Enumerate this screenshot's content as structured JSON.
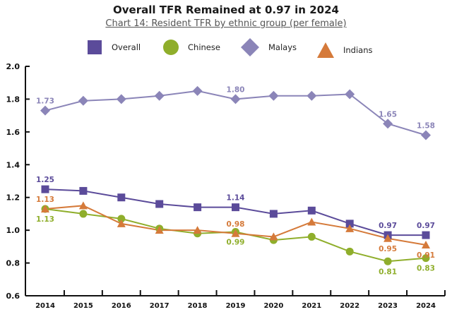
{
  "chart_data": {
    "type": "line",
    "title": "Overall TFR Remained at 0.97 in 2024",
    "subtitle": "Chart 14: Resident TFR by ethnic group (per female)",
    "xlabel": "",
    "ylabel": "",
    "x": [
      "2014",
      "2015",
      "2016",
      "2017",
      "2018",
      "2019",
      "2020",
      "2021",
      "2022",
      "2023",
      "2024"
    ],
    "ylim": [
      0.6,
      2.0
    ],
    "yticks": [
      "0.6",
      "0.8",
      "1.0",
      "1.2",
      "1.4",
      "1.6",
      "1.8",
      "2.0"
    ],
    "grid": false,
    "legend_position": "top",
    "series": [
      {
        "name": "Overall",
        "marker": "square",
        "color": "#5b4b9a",
        "values": [
          1.25,
          1.24,
          1.2,
          1.16,
          1.14,
          1.14,
          1.1,
          1.12,
          1.04,
          0.97,
          0.97
        ],
        "labels": [
          {
            "i": 0,
            "text": "1.25",
            "pos": "above"
          },
          {
            "i": 5,
            "text": "1.14",
            "pos": "above"
          },
          {
            "i": 9,
            "text": "0.97",
            "pos": "above"
          },
          {
            "i": 10,
            "text": "0.97",
            "pos": "above"
          }
        ]
      },
      {
        "name": "Chinese",
        "marker": "circle",
        "color": "#8fae2b",
        "values": [
          1.13,
          1.1,
          1.07,
          1.01,
          0.98,
          0.99,
          0.94,
          0.96,
          0.87,
          0.81,
          0.83
        ],
        "labels": [
          {
            "i": 0,
            "text": "1.13",
            "pos": "below"
          },
          {
            "i": 5,
            "text": "0.99",
            "pos": "below"
          },
          {
            "i": 9,
            "text": "0.81",
            "pos": "below"
          },
          {
            "i": 10,
            "text": "0.83",
            "pos": "below"
          }
        ]
      },
      {
        "name": "Malays",
        "marker": "diamond",
        "color": "#8b85b8",
        "values": [
          1.73,
          1.79,
          1.8,
          1.82,
          1.85,
          1.8,
          1.82,
          1.82,
          1.83,
          1.65,
          1.58
        ],
        "labels": [
          {
            "i": 0,
            "text": "1.73",
            "pos": "above"
          },
          {
            "i": 5,
            "text": "1.80",
            "pos": "above"
          },
          {
            "i": 9,
            "text": "1.65",
            "pos": "above"
          },
          {
            "i": 10,
            "text": "1.58",
            "pos": "above"
          }
        ]
      },
      {
        "name": "Indians",
        "marker": "triangle",
        "color": "#d57a3a",
        "values": [
          1.13,
          1.15,
          1.04,
          1.0,
          1.0,
          0.98,
          0.96,
          1.05,
          1.01,
          0.95,
          0.91
        ],
        "labels": [
          {
            "i": 0,
            "text": "1.13",
            "pos": "above"
          },
          {
            "i": 5,
            "text": "0.98",
            "pos": "above"
          },
          {
            "i": 9,
            "text": "0.95",
            "pos": "below"
          },
          {
            "i": 10,
            "text": "0.91",
            "pos": "below"
          }
        ]
      }
    ]
  }
}
